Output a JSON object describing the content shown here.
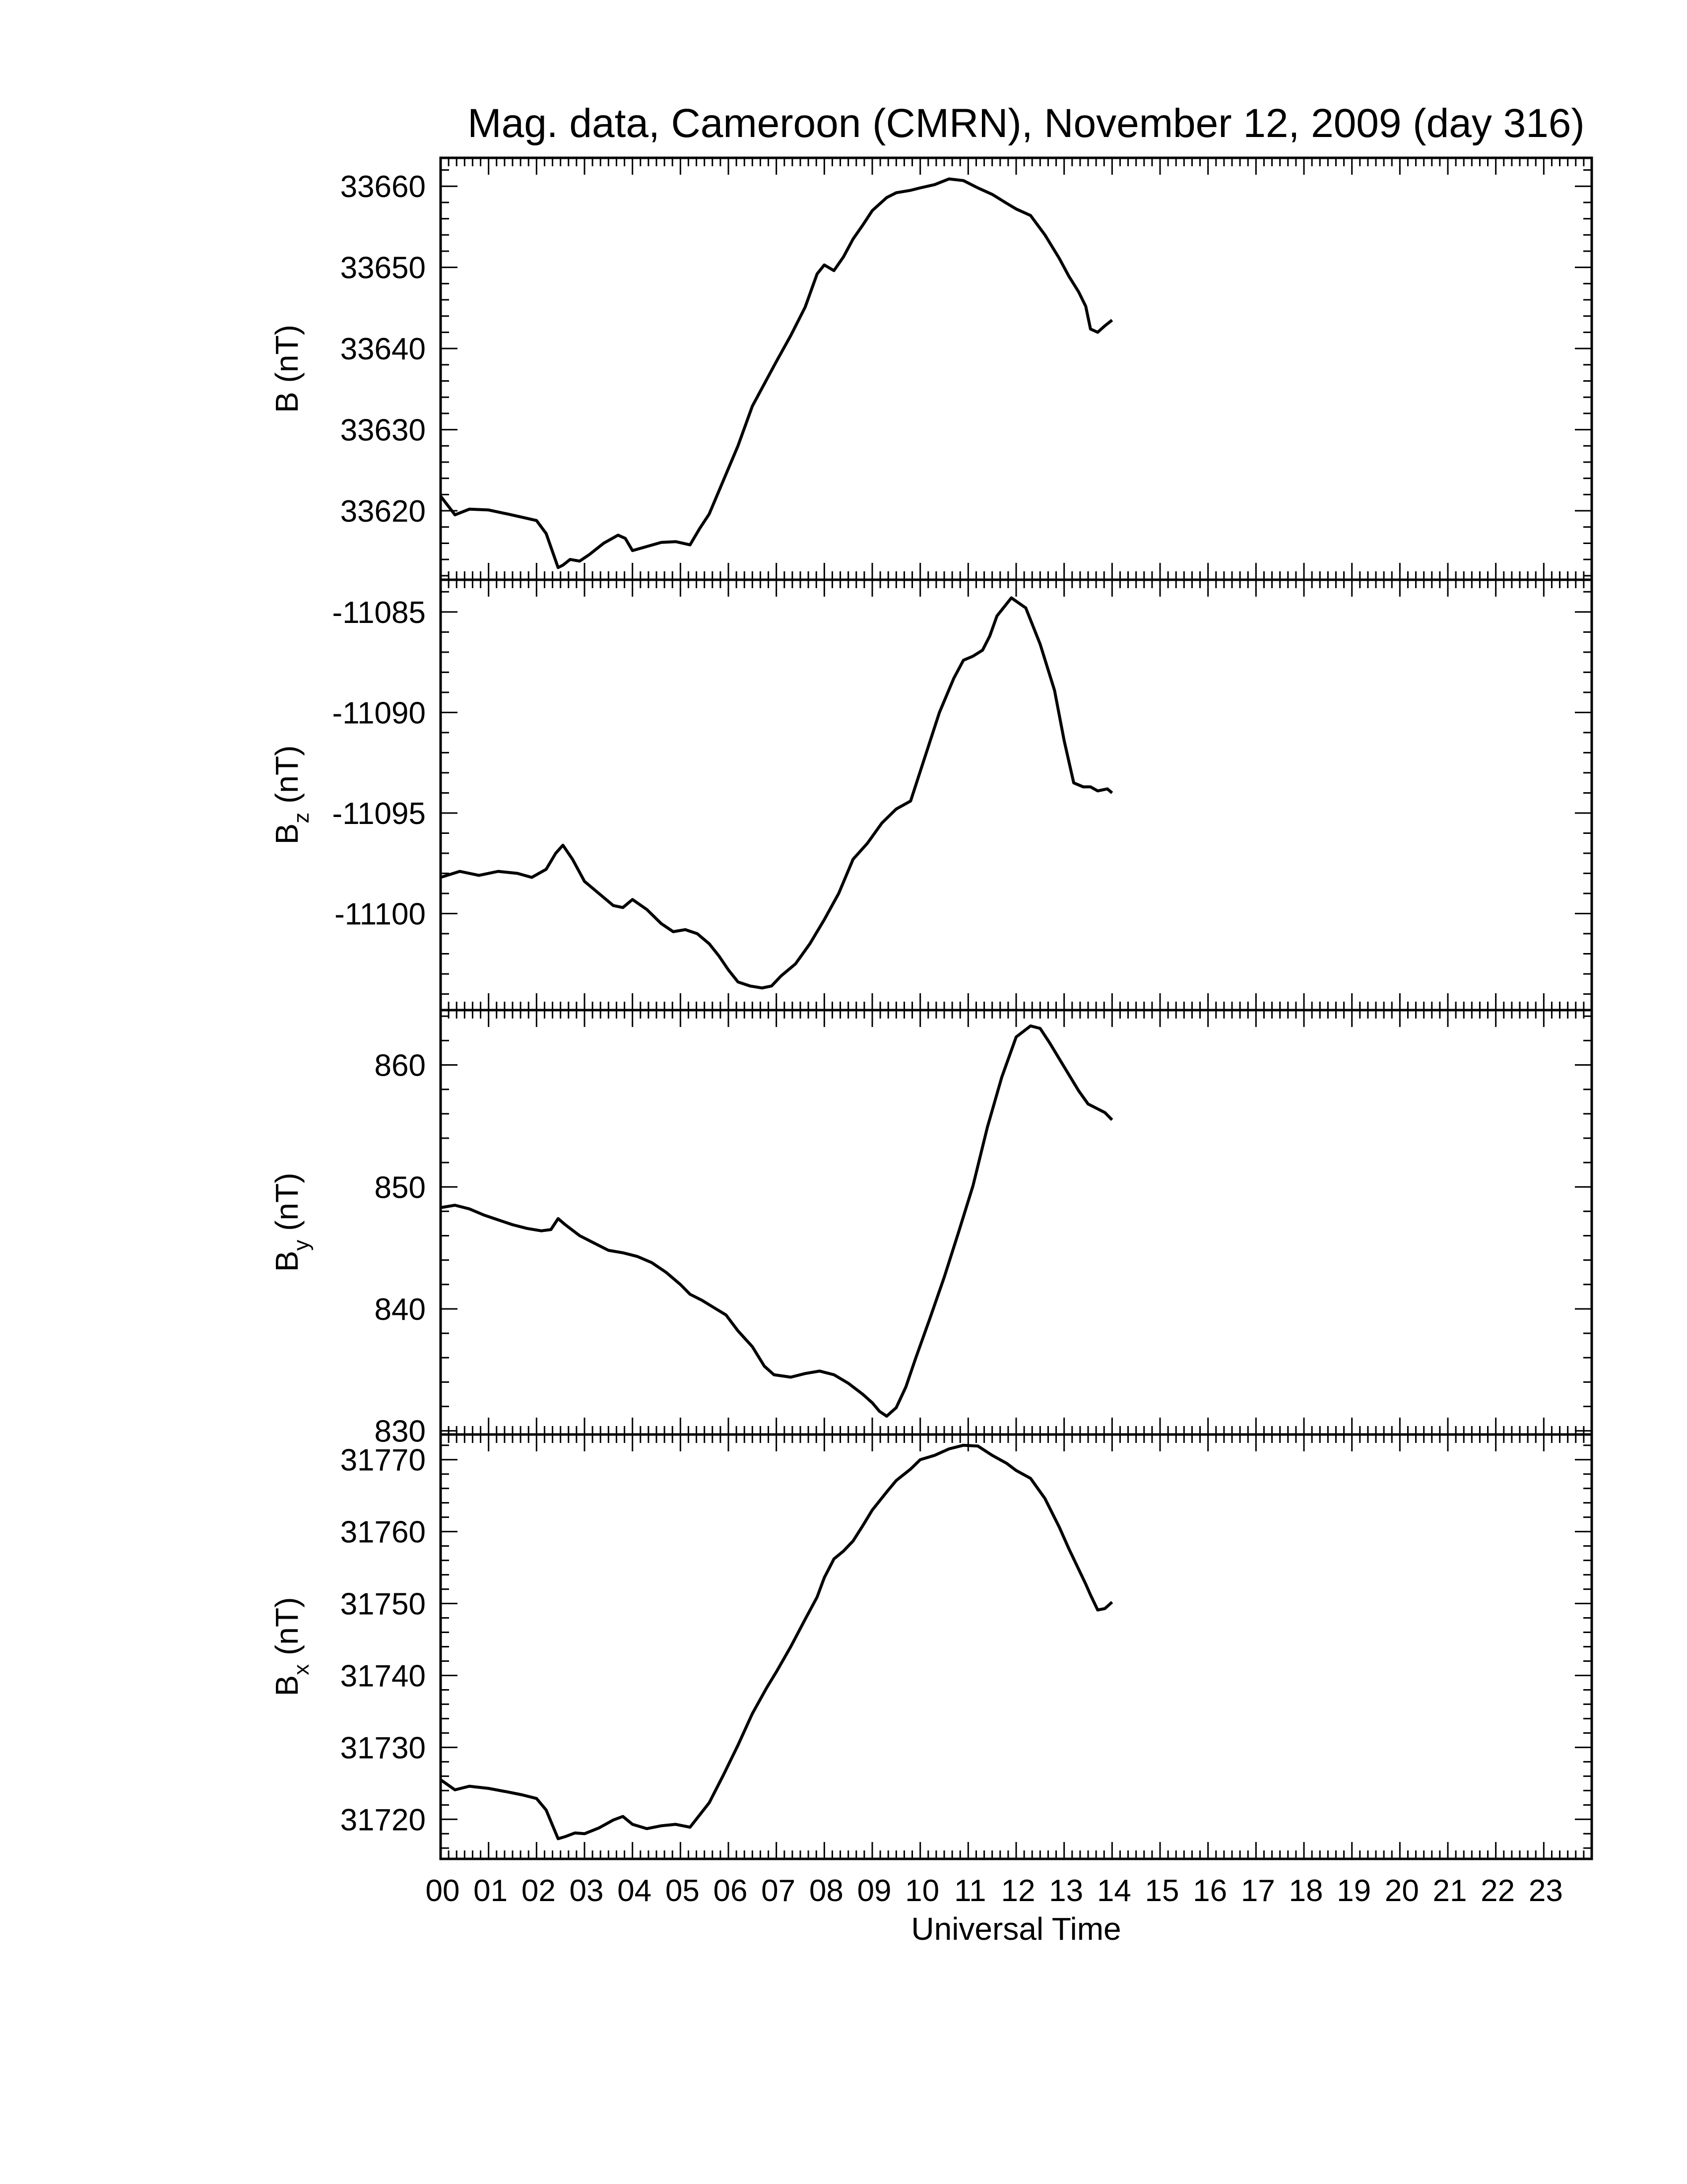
{
  "chart_data": {
    "type": "line",
    "title": "Mag. data, Cameroon (CMRN), November 12, 2009 (day 316)",
    "xlabel": "Universal Time",
    "xlim": [
      0,
      24
    ],
    "x_ticks": [
      "00",
      "01",
      "02",
      "03",
      "04",
      "05",
      "06",
      "07",
      "08",
      "09",
      "10",
      "11",
      "12",
      "13",
      "14",
      "15",
      "16",
      "17",
      "18",
      "19",
      "20",
      "21",
      "22",
      "23"
    ],
    "grid": false,
    "panels": [
      {
        "ylabel_main": "B",
        "ylabel_sub": "",
        "ylabel_unit": "(nT)",
        "ylim": [
          33611.5,
          33663.5
        ],
        "yticks": [
          33620,
          33630,
          33640,
          33650,
          33660
        ],
        "x": [
          0.0,
          0.3,
          0.6,
          1.0,
          1.4,
          1.7,
          2.0,
          2.2,
          2.45,
          2.55,
          2.7,
          2.9,
          3.1,
          3.4,
          3.7,
          3.85,
          4.0,
          4.3,
          4.6,
          4.9,
          5.2,
          5.4,
          5.6,
          5.9,
          6.2,
          6.5,
          6.8,
          7.0,
          7.3,
          7.6,
          7.85,
          8.0,
          8.2,
          8.4,
          8.6,
          8.8,
          9.0,
          9.3,
          9.5,
          9.8,
          10.0,
          10.3,
          10.6,
          10.9,
          11.2,
          11.5,
          11.8,
          12.0,
          12.3,
          12.6,
          12.9,
          13.1,
          13.3,
          13.45,
          13.55,
          13.7,
          13.85,
          14.0
        ],
        "values": [
          33621.8,
          33619.5,
          33620.2,
          33620.1,
          33619.6,
          33619.2,
          33618.8,
          33617.2,
          33613.0,
          33613.3,
          33614.0,
          33613.8,
          33614.6,
          33616.0,
          33617.0,
          33616.6,
          33615.1,
          33615.6,
          33616.1,
          33616.2,
          33615.8,
          33617.8,
          33619.6,
          33623.8,
          33628.0,
          33632.9,
          33636.2,
          33638.4,
          33641.6,
          33645.1,
          33649.2,
          33650.3,
          33649.6,
          33651.3,
          33653.5,
          33655.2,
          33657.0,
          33658.6,
          33659.2,
          33659.5,
          33659.8,
          33660.2,
          33660.9,
          33660.7,
          33659.8,
          33659.0,
          33657.9,
          33657.2,
          33656.4,
          33654.0,
          33651.1,
          33648.9,
          33647.0,
          33645.2,
          33642.4,
          33642.0,
          33642.8,
          33643.5
        ]
      },
      {
        "ylabel_main": "B",
        "ylabel_sub": "z",
        "ylabel_unit": "(nT)",
        "ylim": [
          -11104.8,
          -11083.4
        ],
        "yticks": [
          -11085,
          -11090,
          -11095,
          -11100
        ],
        "x": [
          0.0,
          0.4,
          0.8,
          1.2,
          1.6,
          1.9,
          2.2,
          2.4,
          2.55,
          2.75,
          3.0,
          3.3,
          3.6,
          3.8,
          4.0,
          4.3,
          4.6,
          4.85,
          5.1,
          5.35,
          5.6,
          5.8,
          6.0,
          6.2,
          6.45,
          6.7,
          6.9,
          7.1,
          7.4,
          7.7,
          8.0,
          8.3,
          8.6,
          8.9,
          9.2,
          9.5,
          9.8,
          10.1,
          10.4,
          10.7,
          10.9,
          11.1,
          11.3,
          11.45,
          11.6,
          11.9,
          12.2,
          12.5,
          12.8,
          13.0,
          13.2,
          13.4,
          13.55,
          13.7,
          13.9,
          14.0
        ],
        "values": [
          -11098.2,
          -11097.9,
          -11098.1,
          -11097.9,
          -11098.0,
          -11098.2,
          -11097.8,
          -11097.0,
          -11096.6,
          -11097.3,
          -11098.4,
          -11099.0,
          -11099.6,
          -11099.7,
          -11099.3,
          -11099.8,
          -11100.5,
          -11100.9,
          -11100.8,
          -11101.0,
          -11101.5,
          -11102.1,
          -11102.8,
          -11103.4,
          -11103.6,
          -11103.7,
          -11103.6,
          -11103.1,
          -11102.5,
          -11101.5,
          -11100.3,
          -11099.0,
          -11097.3,
          -11096.5,
          -11095.5,
          -11094.8,
          -11094.4,
          -11092.2,
          -11090.0,
          -11088.3,
          -11087.4,
          -11087.2,
          -11086.9,
          -11086.2,
          -11085.2,
          -11084.3,
          -11084.8,
          -11086.6,
          -11088.9,
          -11091.4,
          -11093.5,
          -11093.7,
          -11093.7,
          -11093.9,
          -11093.8,
          -11094.0
        ]
      },
      {
        "ylabel_main": "B",
        "ylabel_sub": "y",
        "ylabel_unit": "(nT)",
        "ylim": [
          829.7,
          864.5
        ],
        "yticks": [
          830,
          840,
          850,
          860
        ],
        "x": [
          0.0,
          0.3,
          0.6,
          0.9,
          1.2,
          1.5,
          1.8,
          2.1,
          2.3,
          2.45,
          2.6,
          2.9,
          3.2,
          3.5,
          3.8,
          4.1,
          4.4,
          4.7,
          5.0,
          5.2,
          5.45,
          5.7,
          5.95,
          6.2,
          6.5,
          6.75,
          6.95,
          7.3,
          7.6,
          7.9,
          8.2,
          8.5,
          8.8,
          9.0,
          9.15,
          9.3,
          9.5,
          9.7,
          9.9,
          10.2,
          10.5,
          10.8,
          11.1,
          11.4,
          11.7,
          12.0,
          12.3,
          12.5,
          12.7,
          12.9,
          13.1,
          13.3,
          13.5,
          13.7,
          13.85,
          14.0
        ],
        "values": [
          848.3,
          848.5,
          848.2,
          847.7,
          847.3,
          846.9,
          846.6,
          846.4,
          846.5,
          847.4,
          846.9,
          846.0,
          845.4,
          844.8,
          844.6,
          844.3,
          843.8,
          843.0,
          842.0,
          841.2,
          840.7,
          840.1,
          839.5,
          838.2,
          836.9,
          835.3,
          834.6,
          834.4,
          834.7,
          834.9,
          834.6,
          833.9,
          833.0,
          832.3,
          831.6,
          831.2,
          831.9,
          833.6,
          835.9,
          839.2,
          842.6,
          846.3,
          850.1,
          854.9,
          859.0,
          862.3,
          863.2,
          863.0,
          861.8,
          860.5,
          859.2,
          857.9,
          856.8,
          856.4,
          856.1,
          855.5
        ]
      },
      {
        "ylabel_main": "B",
        "ylabel_sub": "x",
        "ylabel_unit": "(nT)",
        "ylim": [
          31714.5,
          31773.5
        ],
        "yticks": [
          31720,
          31730,
          31740,
          31750,
          31760,
          31770
        ],
        "x": [
          0.0,
          0.3,
          0.6,
          1.0,
          1.4,
          1.7,
          2.0,
          2.2,
          2.45,
          2.6,
          2.8,
          3.0,
          3.3,
          3.6,
          3.8,
          4.0,
          4.3,
          4.6,
          4.9,
          5.2,
          5.4,
          5.6,
          5.9,
          6.2,
          6.5,
          6.8,
          7.0,
          7.3,
          7.6,
          7.85,
          8.0,
          8.2,
          8.4,
          8.6,
          8.8,
          9.0,
          9.3,
          9.5,
          9.8,
          10.0,
          10.3,
          10.6,
          10.9,
          11.2,
          11.5,
          11.8,
          12.0,
          12.3,
          12.6,
          12.9,
          13.1,
          13.3,
          13.45,
          13.55,
          13.7,
          13.85,
          14.0
        ],
        "values": [
          31725.5,
          31724.1,
          31724.6,
          31724.3,
          31723.8,
          31723.4,
          31722.9,
          31721.3,
          31717.3,
          31717.6,
          31718.1,
          31718.0,
          31718.8,
          31719.9,
          31720.4,
          31719.3,
          31718.7,
          31719.1,
          31719.3,
          31718.9,
          31720.6,
          31722.3,
          31726.2,
          31730.3,
          31734.7,
          31738.3,
          31740.5,
          31744.0,
          31747.8,
          31750.9,
          31753.6,
          31756.2,
          31757.3,
          31758.7,
          31760.8,
          31763.0,
          31765.5,
          31767.1,
          31768.7,
          31770.0,
          31770.6,
          31771.5,
          31772.0,
          31771.9,
          31770.6,
          31769.5,
          31768.5,
          31767.4,
          31764.6,
          31760.6,
          31757.6,
          31754.8,
          31752.7,
          31751.2,
          31749.1,
          31749.3,
          31750.2
        ]
      }
    ]
  }
}
